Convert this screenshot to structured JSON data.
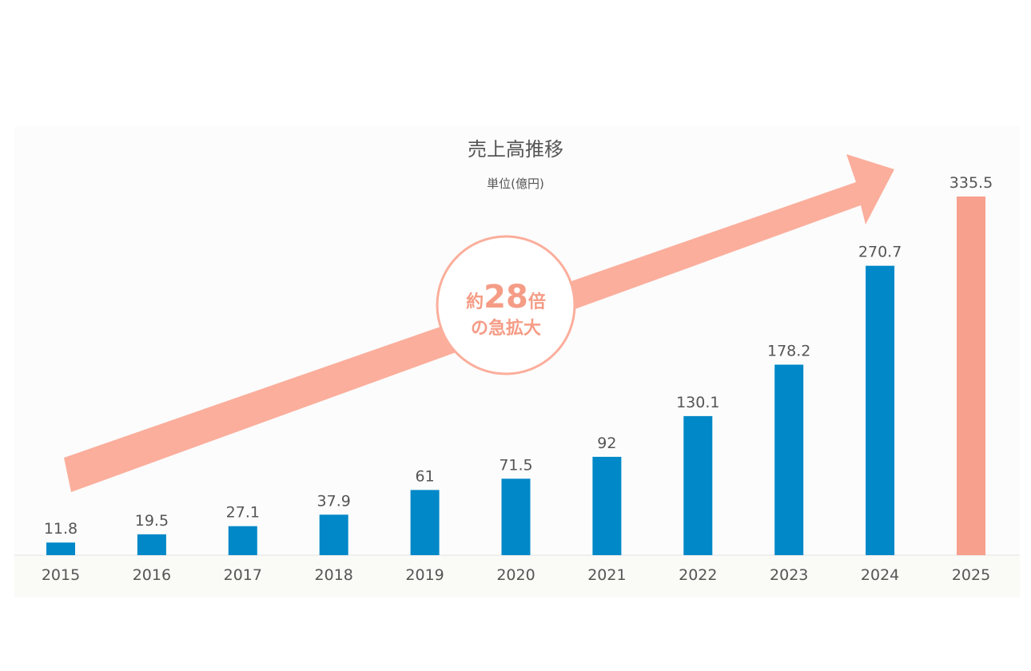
{
  "chart_data": {
    "type": "bar",
    "title": "売上高推移",
    "subtitle": "単位(億円)",
    "categories": [
      "2015",
      "2016",
      "2017",
      "2018",
      "2019",
      "2020",
      "2021",
      "2022",
      "2023",
      "2024",
      "2025"
    ],
    "values": [
      11.8,
      19.5,
      27.1,
      37.9,
      61,
      71.5,
      92,
      130.1,
      178.2,
      270.7,
      335.5
    ],
    "value_labels": [
      "11.8",
      "19.5",
      "27.1",
      "37.9",
      "61",
      "71.5",
      "92",
      "130.1",
      "178.2",
      "270.7",
      "335.5"
    ],
    "ylim": [
      0,
      335.5
    ],
    "grid": false,
    "colors": {
      "bar": "#0088c8",
      "highlight_bar": "#f7a08e",
      "arrow": "#fbae9c",
      "callout_border": "#fbae9c",
      "callout_text": "#f59c86",
      "panel_bg": "#fcfcfc",
      "axis_bg": "#fafaf7",
      "text": "#555555"
    },
    "highlight_index": 10,
    "annotation": {
      "line1_prefix": "約",
      "line1_number": "28",
      "line1_suffix": "倍",
      "line2": "の急拡大"
    }
  }
}
